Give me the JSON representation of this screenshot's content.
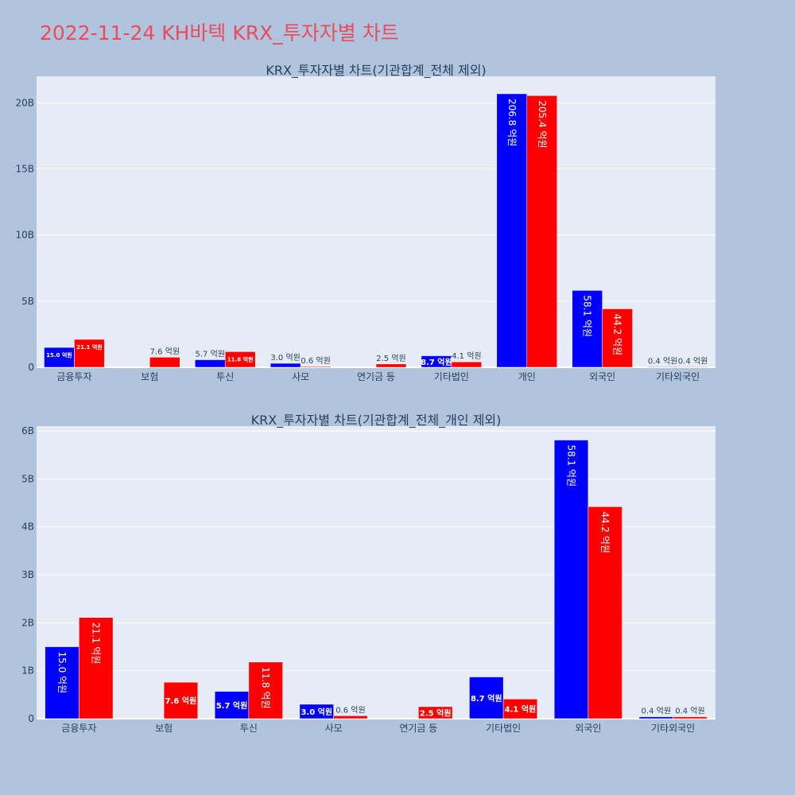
{
  "title": "2022-11-24 KH바텍 KRX_투자자별 차트",
  "colors": {
    "background": "#b0c4de",
    "plot_background": "#e5ecf6",
    "buy": "#0000ff",
    "sell": "#ff0000",
    "title": "#ec4b5c",
    "text": "#2a3f5f"
  },
  "chart_data": [
    {
      "type": "bar",
      "title": "KRX_투자자별 차트(기관합계_전체 제외)",
      "categories": [
        "금융투자",
        "보험",
        "투신",
        "사모",
        "연기금 등",
        "기타법인",
        "개인",
        "외국인",
        "기타외국인"
      ],
      "series": [
        {
          "color": "#0000ff",
          "values": [
            1.5,
            0,
            0.57,
            0.3,
            0,
            0.87,
            20.68,
            5.81,
            0.04
          ],
          "labels": [
            "15.0 억원",
            "",
            "5.7 억원",
            "3.0 억원",
            "",
            "8.7 억원",
            "206.8 억원",
            "58.1 억원",
            "0.4 억원"
          ]
        },
        {
          "color": "#ff0000",
          "values": [
            2.11,
            0.76,
            1.18,
            0.06,
            0.25,
            0.41,
            20.54,
            4.42,
            0.04
          ],
          "labels": [
            "21.1 억원",
            "7.6 억원",
            "11.8 억원",
            "0.6 억원",
            "2.5 억원",
            "4.1 억원",
            "205.4 억원",
            "44.2 억원",
            "0.4 억원"
          ]
        }
      ],
      "value_unit": "B",
      "ylim": [
        0,
        22
      ],
      "yticks": [
        "0",
        "5B",
        "10B",
        "15B",
        "20B"
      ],
      "grid": true
    },
    {
      "type": "bar",
      "title": "KRX_투자자별 차트(기관합계_전체_개인 제외)",
      "categories": [
        "금융투자",
        "보험",
        "투신",
        "사모",
        "연기금 등",
        "기타법인",
        "외국인",
        "기타외국인"
      ],
      "series": [
        {
          "color": "#0000ff",
          "values": [
            1.5,
            0,
            0.57,
            0.3,
            0,
            0.87,
            5.81,
            0.04
          ],
          "labels": [
            "15.0 억원",
            "",
            "5.7 억원",
            "3.0 억원",
            "",
            "8.7 억원",
            "58.1 억원",
            "0.4 억원"
          ]
        },
        {
          "color": "#ff0000",
          "values": [
            2.11,
            0.76,
            1.18,
            0.06,
            0.25,
            0.41,
            4.42,
            0.04
          ],
          "labels": [
            "21.1 억원",
            "7.6 억원",
            "11.8 억원",
            "0.6 억원",
            "2.5 억원",
            "4.1 억원",
            "44.2 억원",
            "0.4 억원"
          ]
        }
      ],
      "value_unit": "B",
      "ylim": [
        0,
        6.1
      ],
      "yticks": [
        "0",
        "1B",
        "2B",
        "3B",
        "4B",
        "5B",
        "6B"
      ],
      "grid": true
    }
  ]
}
